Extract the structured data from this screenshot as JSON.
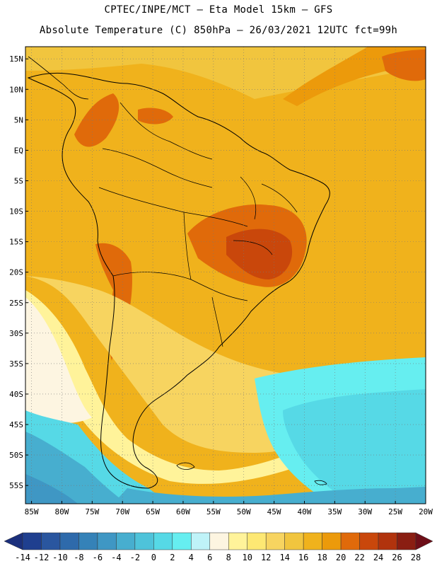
{
  "header": {
    "line1": "CPTEC/INPE/MCT –  Eta Model 15km – GFS",
    "line2": "Absolute Temperature (C) 850hPa – 26/03/2021 12UTC fct=99h"
  },
  "map": {
    "lat_labels": [
      "15N",
      "10N",
      "5N",
      "EQ",
      "5S",
      "10S",
      "15S",
      "20S",
      "25S",
      "30S",
      "35S",
      "40S",
      "45S",
      "50S",
      "55S"
    ],
    "lon_labels": [
      "85W",
      "80W",
      "75W",
      "70W",
      "65W",
      "60W",
      "55W",
      "50W",
      "45W",
      "40W",
      "35W",
      "30W",
      "25W",
      "20W"
    ],
    "lat_values": [
      15,
      10,
      5,
      0,
      -5,
      -10,
      -15,
      -20,
      -25,
      -30,
      -35,
      -40,
      -45,
      -50,
      -55
    ],
    "lon_values": [
      -85,
      -80,
      -75,
      -70,
      -65,
      -60,
      -55,
      -50,
      -45,
      -40,
      -35,
      -30,
      -25,
      -20
    ],
    "lat_range": [
      -58,
      17
    ],
    "lon_range": [
      -86,
      -20
    ],
    "grid": "dotted"
  },
  "colorbar": {
    "labels": [
      "-14",
      "-12",
      "-10",
      "-8",
      "-6",
      "-4",
      "-2",
      "0",
      "2",
      "4",
      "6",
      "8",
      "10",
      "12",
      "14",
      "16",
      "18",
      "20",
      "22",
      "24",
      "26",
      "28"
    ],
    "colors": [
      "#1f3f8f",
      "#2a569f",
      "#2e6aab",
      "#3582b8",
      "#3f97c4",
      "#47aecf",
      "#4ec3da",
      "#56d9e6",
      "#66eef0",
      "#bff3f8",
      "#fdf5e1",
      "#fff39a",
      "#fde873",
      "#f7d460",
      "#f1c53e",
      "#f0b21c",
      "#ec9a0b",
      "#e06a0a",
      "#c9470b",
      "#b1330d",
      "#8a1e12"
    ],
    "left_arrow_color": "#1b2f7c",
    "right_arrow_color": "#6e0e18"
  }
}
